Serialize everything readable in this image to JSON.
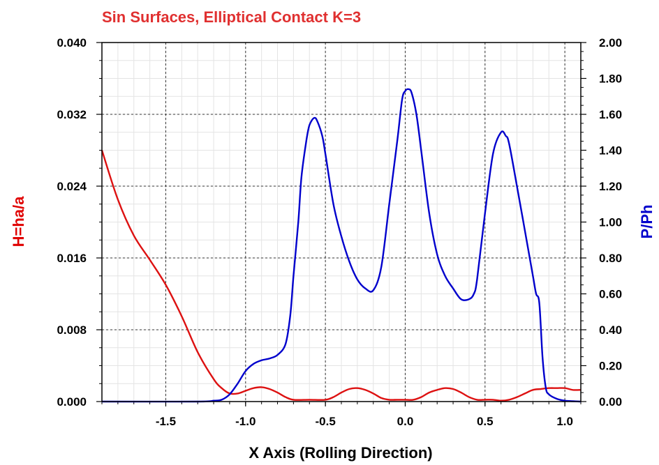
{
  "chart_data": {
    "type": "line",
    "title": "Sin Surfaces, Elliptical Contact K=3",
    "xlabel": "X Axis (Rolling Direction)",
    "ylabel_left": "H=ha/a",
    "ylabel_right": "P/Ph",
    "xlim": [
      -1.9,
      1.1
    ],
    "ylim_left": [
      0,
      0.04
    ],
    "ylim_right": [
      0,
      2.0
    ],
    "x_ticks": [
      "-1.5",
      "-1.0",
      "-0.5",
      "0.0",
      "0.5",
      "1.0"
    ],
    "x_tick_values": [
      -1.5,
      -1.0,
      -0.5,
      0.0,
      0.5,
      1.0
    ],
    "y_left_ticks": [
      "0.000",
      "0.008",
      "0.016",
      "0.024",
      "0.032",
      "0.040"
    ],
    "y_left_tick_values": [
      0,
      0.008,
      0.016,
      0.024,
      0.032,
      0.04
    ],
    "y_right_ticks": [
      "0.00",
      "0.20",
      "0.40",
      "0.60",
      "0.80",
      "1.00",
      "1.20",
      "1.40",
      "1.60",
      "1.80",
      "2.00"
    ],
    "y_right_tick_values": [
      0,
      0.2,
      0.4,
      0.6,
      0.8,
      1.0,
      1.2,
      1.4,
      1.6,
      1.8,
      2.0
    ],
    "grid": true,
    "colors": {
      "title": "#e03030",
      "left_axis": "#e00000",
      "right_axis": "#0000cc",
      "film": "#dd1111",
      "pressure": "#0000cc"
    },
    "series": [
      {
        "axis": "left",
        "color": "#dd1111",
        "x": [
          -1.9,
          -1.8,
          -1.7,
          -1.6,
          -1.5,
          -1.4,
          -1.3,
          -1.2,
          -1.15,
          -1.1,
          -1.05,
          -1.0,
          -0.95,
          -0.9,
          -0.85,
          -0.8,
          -0.75,
          -0.7,
          -0.6,
          -0.5,
          -0.45,
          -0.4,
          -0.35,
          -0.3,
          -0.25,
          -0.2,
          -0.15,
          -0.1,
          -0.05,
          0.0,
          0.05,
          0.1,
          0.15,
          0.2,
          0.25,
          0.3,
          0.35,
          0.4,
          0.45,
          0.5,
          0.55,
          0.6,
          0.65,
          0.7,
          0.75,
          0.8,
          0.85,
          0.9,
          0.95,
          1.0,
          1.05,
          1.1
        ],
        "y": [
          0.028,
          0.0225,
          0.0185,
          0.0158,
          0.013,
          0.0095,
          0.0055,
          0.0025,
          0.0015,
          0.0009,
          0.0009,
          0.0012,
          0.0015,
          0.0016,
          0.0014,
          0.001,
          0.0005,
          0.0002,
          0.0002,
          0.0002,
          0.0005,
          0.001,
          0.0014,
          0.0015,
          0.0013,
          0.0009,
          0.0004,
          0.0002,
          0.0002,
          0.0002,
          0.0002,
          0.0005,
          0.001,
          0.0013,
          0.0015,
          0.0014,
          0.001,
          0.0005,
          0.0002,
          0.0002,
          0.0002,
          0.0001,
          0.0002,
          0.0005,
          0.0009,
          0.0013,
          0.0014,
          0.0015,
          0.0015,
          0.0015,
          0.0013,
          0.0013
        ]
      },
      {
        "axis": "right",
        "color": "#0000cc",
        "x": [
          -1.9,
          -1.3,
          -1.2,
          -1.15,
          -1.1,
          -1.05,
          -1.0,
          -0.95,
          -0.9,
          -0.85,
          -0.8,
          -0.75,
          -0.72,
          -0.7,
          -0.67,
          -0.65,
          -0.62,
          -0.6,
          -0.57,
          -0.55,
          -0.52,
          -0.5,
          -0.45,
          -0.4,
          -0.35,
          -0.3,
          -0.25,
          -0.2,
          -0.15,
          -0.1,
          -0.05,
          -0.02,
          0.0,
          0.02,
          0.04,
          0.07,
          0.1,
          0.15,
          0.2,
          0.25,
          0.3,
          0.35,
          0.4,
          0.43,
          0.45,
          0.5,
          0.55,
          0.6,
          0.63,
          0.65,
          0.7,
          0.75,
          0.8,
          0.82,
          0.84,
          0.86,
          0.88,
          0.9,
          0.95,
          1.0,
          1.05,
          1.1
        ],
        "y": [
          0.0,
          0.0,
          0.005,
          0.01,
          0.04,
          0.1,
          0.17,
          0.21,
          0.23,
          0.24,
          0.26,
          0.32,
          0.48,
          0.7,
          1.0,
          1.25,
          1.45,
          1.54,
          1.58,
          1.56,
          1.48,
          1.38,
          1.1,
          0.92,
          0.78,
          0.68,
          0.63,
          0.62,
          0.75,
          1.1,
          1.45,
          1.68,
          1.73,
          1.74,
          1.72,
          1.6,
          1.4,
          1.05,
          0.82,
          0.7,
          0.63,
          0.57,
          0.57,
          0.6,
          0.68,
          1.05,
          1.38,
          1.5,
          1.48,
          1.44,
          1.2,
          0.95,
          0.7,
          0.6,
          0.55,
          0.25,
          0.08,
          0.04,
          0.015,
          0.005,
          0.002,
          0.0
        ]
      }
    ]
  }
}
